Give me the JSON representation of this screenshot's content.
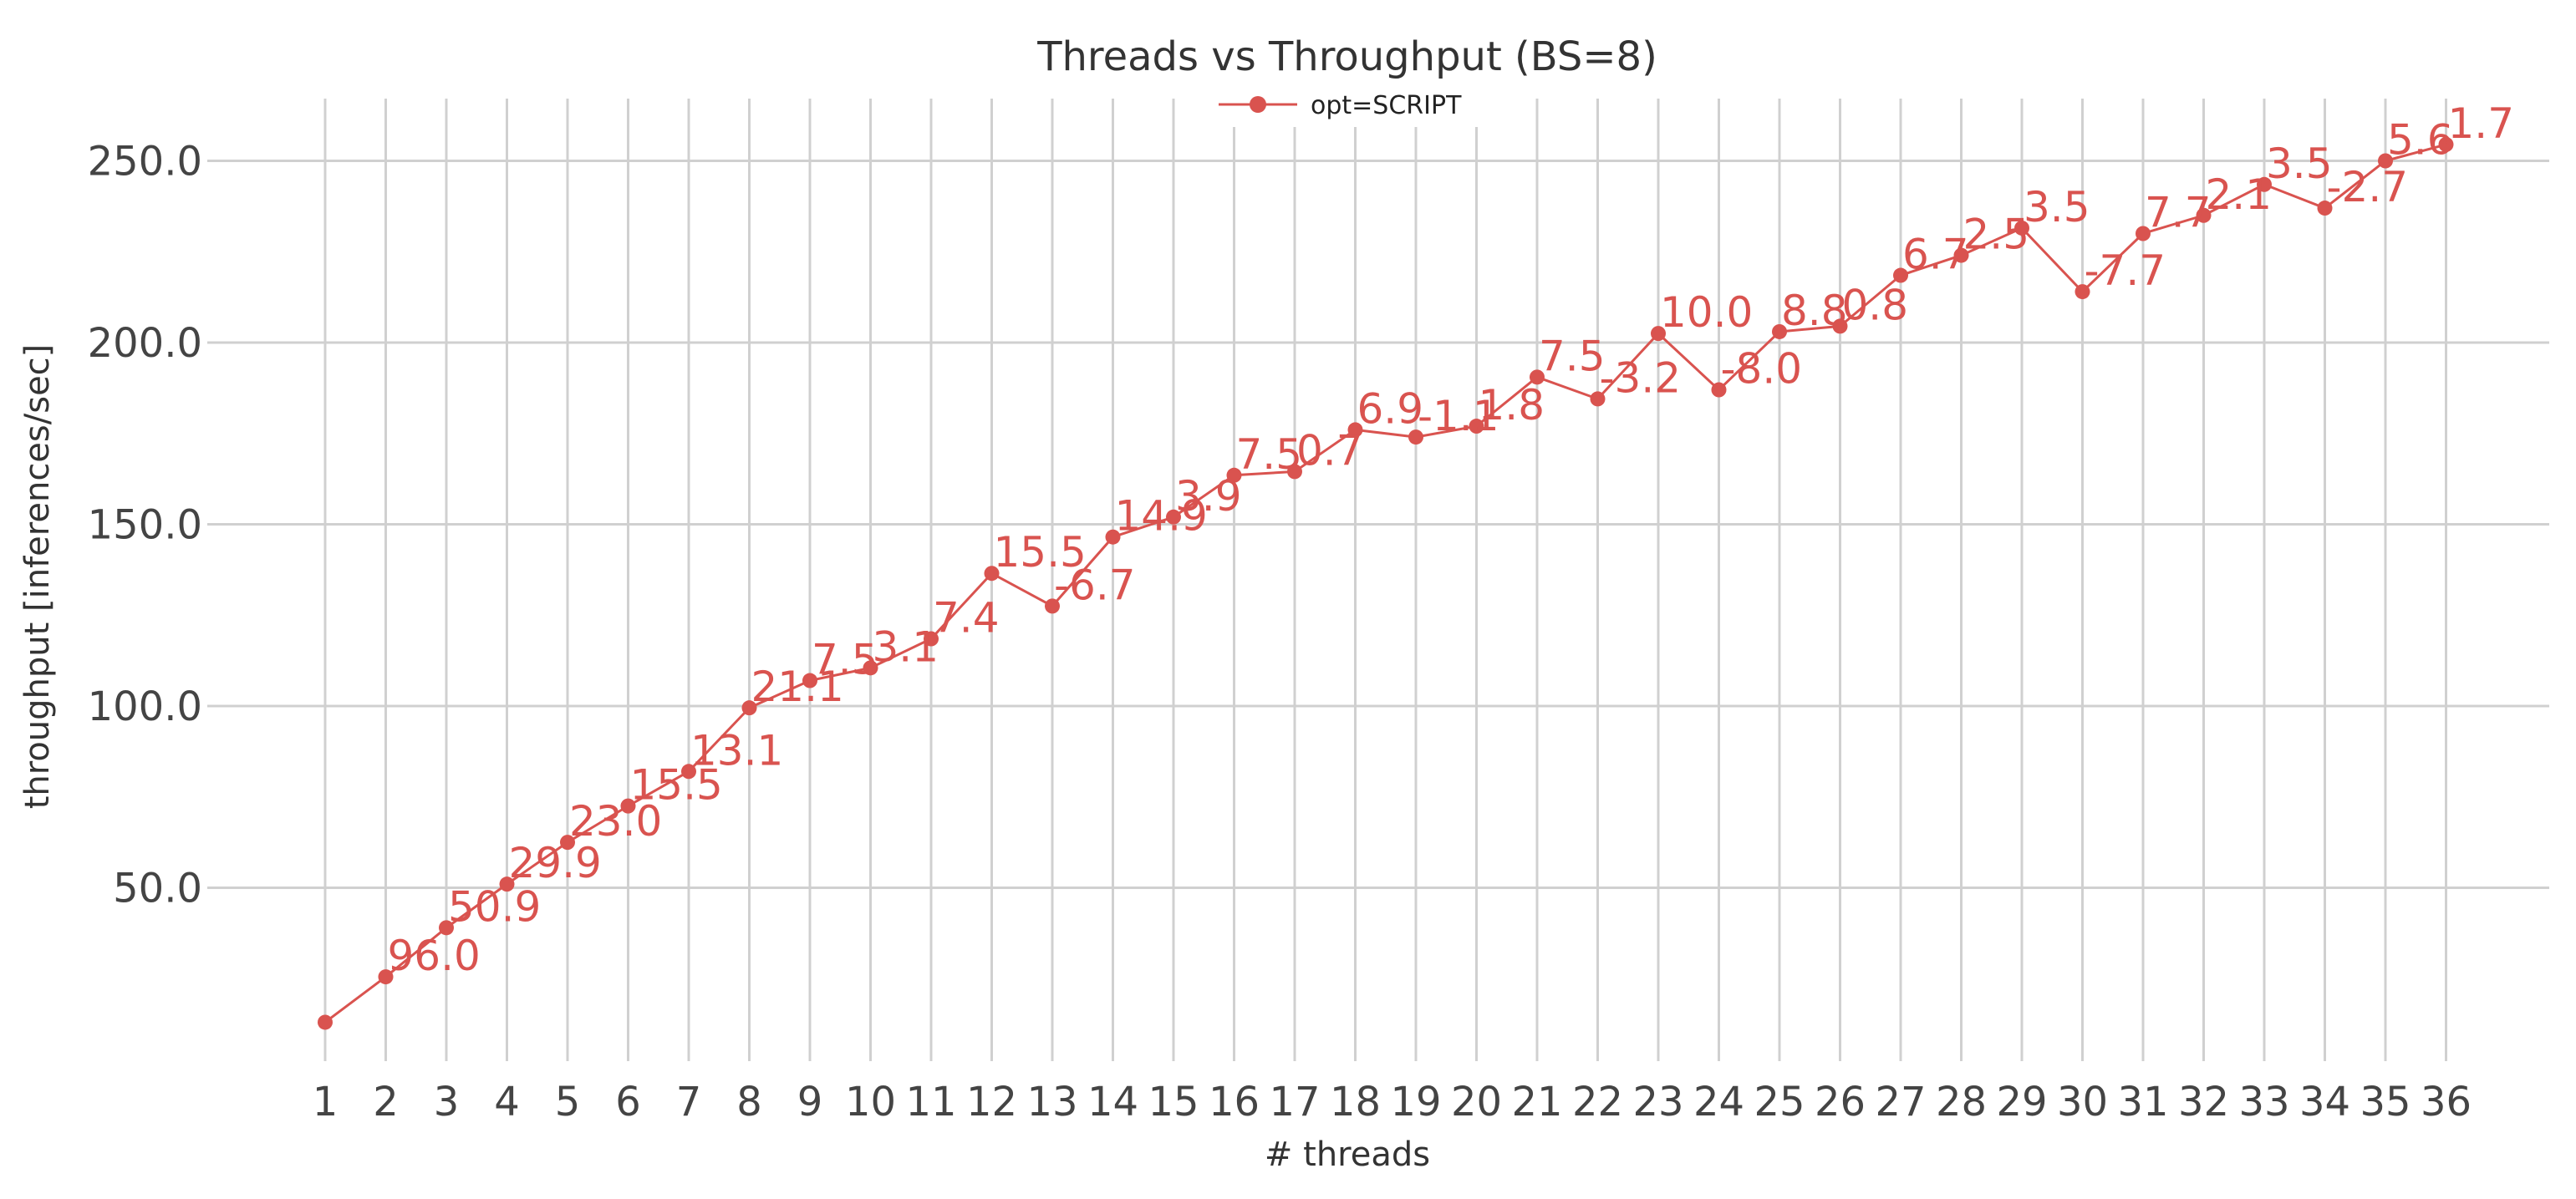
{
  "chart_data": {
    "type": "line",
    "title": "Threads vs Throughput (BS=8)",
    "xlabel": "# threads",
    "ylabel": "throughput [inferences/sec]",
    "x": [
      1,
      2,
      3,
      4,
      5,
      6,
      7,
      8,
      9,
      10,
      11,
      12,
      13,
      14,
      15,
      16,
      17,
      18,
      19,
      20,
      21,
      22,
      23,
      24,
      25,
      26,
      27,
      28,
      29,
      30,
      31,
      32,
      33,
      34,
      35,
      36
    ],
    "yticks": [
      "50.0",
      "100.0",
      "150.0",
      "200.0",
      "250.0"
    ],
    "ylim": [
      0,
      265
    ],
    "grid": "on",
    "legend_position": "top-center",
    "series": [
      {
        "name": "opt=SCRIPT",
        "color": "#d9534f",
        "values": [
          13.0,
          25.5,
          39.0,
          51.0,
          62.5,
          72.5,
          82.0,
          99.5,
          107.0,
          110.5,
          118.5,
          136.5,
          127.5,
          146.5,
          152.0,
          163.5,
          164.5,
          176.0,
          174.0,
          177.0,
          190.5,
          184.5,
          202.5,
          187.0,
          203.0,
          204.5,
          218.5,
          224.0,
          231.5,
          214.0,
          230.0,
          235.0,
          243.5,
          237.0,
          250.0,
          254.5
        ],
        "labels": [
          "",
          "96.0",
          "50.9",
          "29.9",
          "23.0",
          "15.5",
          "13.1",
          "21.1",
          "7.5",
          "3.1",
          "7.4",
          "15.5",
          "-6.7",
          "14.9",
          "3.9",
          "7.5",
          "0.7",
          "6.9",
          "-1.1",
          "1.8",
          "7.5",
          "-3.2",
          "10.0",
          "-8.0",
          "8.8",
          "0.8",
          "6.7",
          "2.5",
          "3.5",
          "-7.7",
          "7.7",
          "2.1",
          "3.5",
          "-2.7",
          "5.6",
          "1.7"
        ]
      }
    ]
  }
}
